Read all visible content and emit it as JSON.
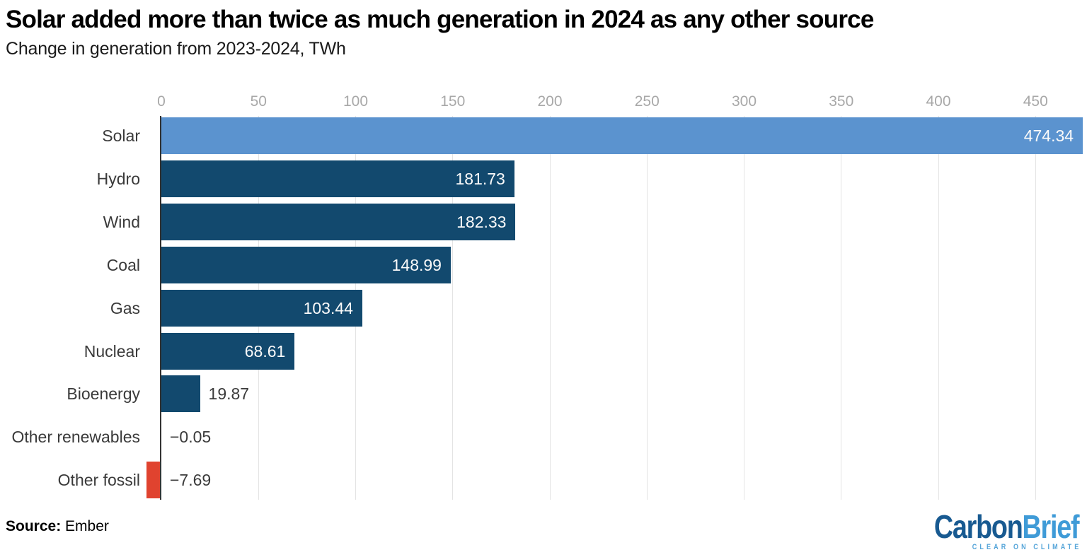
{
  "page": {
    "title": "Solar added more than twice as much generation in 2024 as any other source",
    "subtitle": "Change in generation from 2023-2024, TWh",
    "source_label": "Source:",
    "source_value": "Ember"
  },
  "logo": {
    "part1": "Carbon",
    "part2": "Brief",
    "tagline": "CLEAR ON CLIMATE",
    "part1_color": "#185a91",
    "part2_color": "#3f9bd7",
    "tagline_color": "#55a5d9"
  },
  "chart_data": {
    "type": "bar",
    "orientation": "horizontal",
    "title": "Solar added more than twice as much generation in 2024 as any other source",
    "subtitle": "Change in generation from 2023-2024, TWh",
    "xlabel": "",
    "ylabel": "",
    "categories": [
      "Solar",
      "Hydro",
      "Wind",
      "Coal",
      "Gas",
      "Nuclear",
      "Bioenergy",
      "Other renewables",
      "Other fossil"
    ],
    "values": [
      474.34,
      181.73,
      182.33,
      148.99,
      103.44,
      68.61,
      19.87,
      -0.05,
      -7.69
    ],
    "value_labels": [
      "474.34",
      "181.73",
      "182.33",
      "148.99",
      "103.44",
      "68.61",
      "19.87",
      "−0.05",
      "−7.69"
    ],
    "xticks": [
      0,
      50,
      100,
      150,
      200,
      250,
      300,
      350,
      400,
      450
    ],
    "xlim": [
      0,
      474.34
    ],
    "grid": true,
    "legend": "none",
    "color_roles": [
      "highlight",
      "positive",
      "positive",
      "positive",
      "positive",
      "positive",
      "positive",
      "negative",
      "negative"
    ],
    "bar_colors": {
      "highlight": "#5b93cf",
      "positive": "#12496e",
      "negative": "#e0432f"
    },
    "value_label_inside_color": "#fafafa",
    "value_label_outside_color": "#3b3b3b",
    "category_label_color": "#3a3a3a",
    "tick_label_color": "#a8a8a8",
    "gridline_color": "#e4e4e4",
    "axis_line_color": "#333333"
  }
}
